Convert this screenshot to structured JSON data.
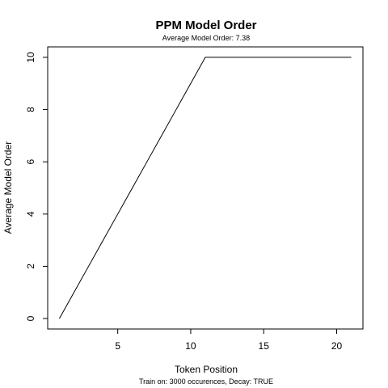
{
  "chart_data": {
    "type": "line",
    "title": "PPM Model Order",
    "subtitle": "Average Model Order: 7.38",
    "xlabel": "Token Position",
    "ylabel": "Average Model Order",
    "caption": "Train on: 3000 occurences, Decay: TRUE",
    "xlim": [
      0.2,
      21.8
    ],
    "ylim": [
      -0.4,
      10.4
    ],
    "xticks": [
      5,
      10,
      15,
      20
    ],
    "yticks": [
      0,
      2,
      4,
      6,
      8,
      10
    ],
    "grid": false,
    "legend": "none",
    "line_color": "#000000",
    "x": [
      1,
      2,
      3,
      4,
      5,
      6,
      7,
      8,
      9,
      10,
      11,
      12,
      13,
      14,
      15,
      16,
      17,
      18,
      19,
      20,
      21
    ],
    "y": [
      0,
      1,
      2,
      3,
      4,
      5,
      6,
      7,
      8,
      9,
      10,
      10,
      10,
      10,
      10,
      10,
      10,
      10,
      10,
      10,
      10
    ]
  }
}
